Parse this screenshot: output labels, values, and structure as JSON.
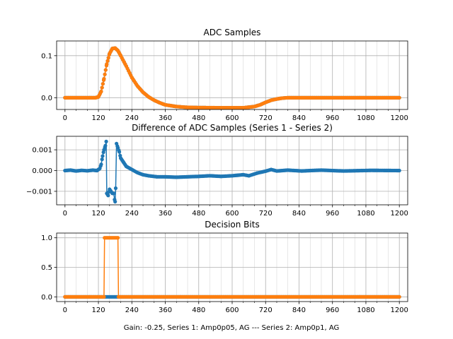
{
  "figure": {
    "xlabel": "Gain: -0.25, Series 1: Amp0p05, AG --- Series 2: Amp0p1, AG"
  },
  "colors": {
    "series1": "#1f77b4",
    "series2": "#ff7f0e",
    "grid": "#b0b0b0",
    "axis": "#000000"
  },
  "chart_data": [
    {
      "type": "line",
      "title": "ADC Samples",
      "xlim": [
        -30,
        1230
      ],
      "ylim": [
        -0.028,
        0.135
      ],
      "xticks": [
        0,
        120,
        240,
        360,
        480,
        600,
        720,
        840,
        960,
        1080,
        1200
      ],
      "xminor": [
        40,
        80,
        160,
        200,
        280,
        320,
        400,
        440,
        520,
        560,
        640,
        680,
        760,
        800,
        880,
        920,
        1000,
        1040,
        1120,
        1160
      ],
      "yticks": [
        0.0,
        0.1
      ],
      "ytick_labels": [
        "0.0",
        "0.1"
      ],
      "grid": true,
      "markers": true,
      "series": [
        {
          "color": "#1f77b4",
          "points": [
            [
              0,
              0
            ],
            [
              110,
              0
            ],
            [
              120,
              0.002
            ],
            [
              130,
              0.015
            ],
            [
              140,
              0.045
            ],
            [
              150,
              0.08
            ],
            [
              160,
              0.105
            ],
            [
              170,
              0.117
            ],
            [
              180,
              0.118
            ],
            [
              190,
              0.112
            ],
            [
              200,
              0.1
            ],
            [
              220,
              0.075
            ],
            [
              240,
              0.048
            ],
            [
              260,
              0.028
            ],
            [
              280,
              0.013
            ],
            [
              300,
              0.002
            ],
            [
              320,
              -0.006
            ],
            [
              340,
              -0.012
            ],
            [
              360,
              -0.017
            ],
            [
              400,
              -0.021
            ],
            [
              440,
              -0.023
            ],
            [
              480,
              -0.0235
            ],
            [
              560,
              -0.024
            ],
            [
              640,
              -0.024
            ],
            [
              680,
              -0.021
            ],
            [
              700,
              -0.017
            ],
            [
              720,
              -0.011
            ],
            [
              740,
              -0.006
            ],
            [
              760,
              -0.003
            ],
            [
              780,
              -0.001
            ],
            [
              800,
              0
            ],
            [
              1200,
              0
            ]
          ]
        },
        {
          "color": "#ff7f0e",
          "points": [
            [
              0,
              0
            ],
            [
              110,
              0
            ],
            [
              120,
              0.002
            ],
            [
              130,
              0.015
            ],
            [
              140,
              0.045
            ],
            [
              150,
              0.08
            ],
            [
              160,
              0.105
            ],
            [
              170,
              0.117
            ],
            [
              180,
              0.118
            ],
            [
              190,
              0.112
            ],
            [
              200,
              0.1
            ],
            [
              220,
              0.075
            ],
            [
              240,
              0.048
            ],
            [
              260,
              0.028
            ],
            [
              280,
              0.013
            ],
            [
              300,
              0.002
            ],
            [
              320,
              -0.006
            ],
            [
              340,
              -0.012
            ],
            [
              360,
              -0.017
            ],
            [
              400,
              -0.021
            ],
            [
              440,
              -0.023
            ],
            [
              480,
              -0.0235
            ],
            [
              560,
              -0.024
            ],
            [
              640,
              -0.024
            ],
            [
              680,
              -0.021
            ],
            [
              700,
              -0.017
            ],
            [
              720,
              -0.011
            ],
            [
              740,
              -0.006
            ],
            [
              760,
              -0.003
            ],
            [
              780,
              -0.001
            ],
            [
              800,
              0
            ],
            [
              1200,
              0
            ]
          ]
        }
      ]
    },
    {
      "type": "line",
      "title": "Difference of ADC Samples (Series 1 - Series 2)",
      "xlim": [
        -30,
        1230
      ],
      "ylim": [
        -0.00165,
        0.00165
      ],
      "xticks": [
        0,
        120,
        240,
        360,
        480,
        600,
        720,
        840,
        960,
        1080,
        1200
      ],
      "xminor": [
        40,
        80,
        160,
        200,
        280,
        320,
        400,
        440,
        520,
        560,
        640,
        680,
        760,
        800,
        880,
        920,
        1000,
        1040,
        1120,
        1160
      ],
      "yticks": [
        0.001,
        0.0,
        -0.001
      ],
      "ytick_labels": [
        "0.001",
        "0.000",
        "−0.001"
      ],
      "grid": true,
      "markers": true,
      "series": [
        {
          "color": "#1f77b4",
          "points": [
            [
              0,
              0
            ],
            [
              20,
              2e-05
            ],
            [
              40,
              -2e-05
            ],
            [
              60,
              1e-05
            ],
            [
              80,
              -1e-05
            ],
            [
              100,
              2e-05
            ],
            [
              115,
              0
            ],
            [
              120,
              5e-05
            ],
            [
              125,
              0.0001
            ],
            [
              130,
              0.0003
            ],
            [
              135,
              0.0007
            ],
            [
              140,
              0.001
            ],
            [
              145,
              0.0012
            ],
            [
              148,
              0.0014
            ],
            [
              150,
              -0.0011
            ],
            [
              155,
              -0.0012
            ],
            [
              160,
              -0.0009
            ],
            [
              165,
              -0.001
            ],
            [
              170,
              -0.0011
            ],
            [
              175,
              -0.0011
            ],
            [
              178,
              -0.0014
            ],
            [
              180,
              -0.0015
            ],
            [
              182,
              -0.00085
            ],
            [
              185,
              0.0013
            ],
            [
              190,
              0.0011
            ],
            [
              195,
              0.0009
            ],
            [
              200,
              0.0006
            ],
            [
              210,
              0.0004
            ],
            [
              220,
              0.0002
            ],
            [
              240,
              5e-05
            ],
            [
              260,
              -0.0001
            ],
            [
              280,
              -0.0002
            ],
            [
              300,
              -0.00025
            ],
            [
              330,
              -0.0003
            ],
            [
              360,
              -0.0003
            ],
            [
              400,
              -0.00032
            ],
            [
              440,
              -0.0003
            ],
            [
              480,
              -0.00028
            ],
            [
              520,
              -0.00025
            ],
            [
              560,
              -0.00028
            ],
            [
              600,
              -0.00025
            ],
            [
              640,
              -0.0002
            ],
            [
              660,
              -0.00025
            ],
            [
              690,
              -0.00012
            ],
            [
              720,
              -3e-05
            ],
            [
              740,
              5e-05
            ],
            [
              760,
              -2e-05
            ],
            [
              800,
              2e-05
            ],
            [
              850,
              -2e-05
            ],
            [
              880,
              0
            ],
            [
              920,
              2e-05
            ],
            [
              1000,
              -2e-05
            ],
            [
              1100,
              1e-05
            ],
            [
              1200,
              0
            ]
          ]
        }
      ]
    },
    {
      "type": "line",
      "title": "Decision Bits",
      "xlim": [
        -30,
        1230
      ],
      "ylim": [
        -0.08,
        1.08
      ],
      "xticks": [
        0,
        120,
        240,
        360,
        480,
        600,
        720,
        840,
        960,
        1080,
        1200
      ],
      "xminor": [
        40,
        80,
        160,
        200,
        280,
        320,
        400,
        440,
        520,
        560,
        640,
        680,
        760,
        800,
        880,
        920,
        1000,
        1040,
        1120,
        1160
      ],
      "yticks": [
        0.0,
        0.5,
        1.0
      ],
      "ytick_labels": [
        "0.0",
        "0.5",
        "1.0"
      ],
      "grid": true,
      "markers": true,
      "series": [
        {
          "color": "#1f77b4",
          "points": [
            [
              0,
              0
            ],
            [
              1200,
              0
            ]
          ]
        },
        {
          "color": "#ff7f0e",
          "points": [
            [
              0,
              0
            ],
            [
              140,
              0
            ],
            [
              142,
              1
            ],
            [
              190,
              1
            ],
            [
              192,
              0
            ],
            [
              1200,
              0
            ]
          ]
        }
      ]
    }
  ]
}
